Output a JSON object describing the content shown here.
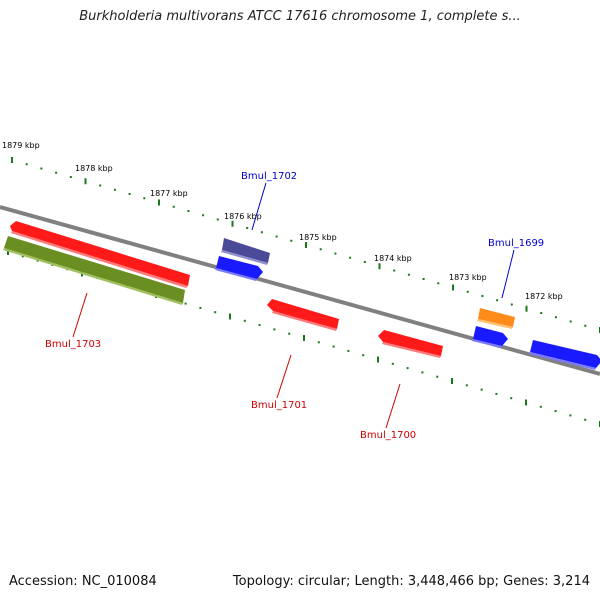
{
  "title": "Burkholderia multivorans ATCC 17616 chromosome 1, complete s...",
  "footer": {
    "accession": "Accession: NC_010084",
    "summary": "Topology: circular; Length: 3,448,466 bp; Genes: 3,214"
  },
  "colors": {
    "backbone": "#808080",
    "tick": "#1a7a1a",
    "gene_red": "#ff1a1a",
    "gene_blue": "#1a1aff",
    "gene_purple": "#4a4a99",
    "gene_olive": "#6b8e23",
    "gene_orange": "#ff8c1a",
    "label_blue": "#0000cc",
    "label_red": "#cc0000"
  },
  "ticks": {
    "kbp": [
      "1879 kbp",
      "1878 kbp",
      "1877 kbp",
      "1876 kbp",
      "1875 kbp",
      "1874 kbp",
      "1873 kbp",
      "1872 kbp"
    ]
  },
  "genes": [
    {
      "label": "Bmul_1703",
      "label_color": "label_red"
    },
    {
      "label": "Bmul_1702",
      "label_color": "label_blue"
    },
    {
      "label": "Bmul_1701",
      "label_color": "label_red"
    },
    {
      "label": "Bmul_1700",
      "label_color": "label_red"
    },
    {
      "label": "Bmul_1699",
      "label_color": "label_blue"
    }
  ]
}
